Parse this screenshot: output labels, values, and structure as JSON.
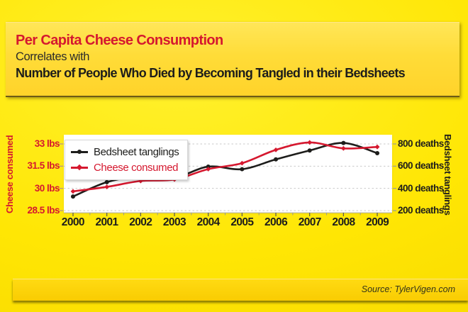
{
  "header": {
    "title_line1": "Per Capita Cheese Consumption",
    "title_line2": "Correlates with",
    "title_line3": "Number of People Who Died by Becoming Tangled in their Bedsheets"
  },
  "footer": {
    "source_text": "Source: TylerVigen.com"
  },
  "colors": {
    "background": "#ffe604",
    "card": "#ffd935",
    "accent_red": "#d5182f",
    "ink": "#1d1d1b",
    "panel": "#ffffff",
    "source_bar": "#f9cc02",
    "gridline": "#c9c9c9"
  },
  "chart_data": {
    "type": "line",
    "title": "Per Capita Cheese Consumption Correlates with Number of People Who Died by Becoming Tangled in their Bedsheets",
    "x": [
      2000,
      2001,
      2002,
      2003,
      2004,
      2005,
      2006,
      2007,
      2008,
      2009
    ],
    "series": [
      {
        "name": "Bedsheet tanglings",
        "axis": "right",
        "color": "#1d1d1b",
        "marker": "circle",
        "values": [
          327,
          456,
          509,
          497,
          596,
          573,
          661,
          741,
          809,
          717
        ]
      },
      {
        "name": "Cheese consumed",
        "axis": "left",
        "color": "#d5182f",
        "marker": "diamond",
        "values": [
          29.8,
          30.1,
          30.5,
          30.6,
          31.3,
          31.7,
          32.6,
          33.1,
          32.7,
          32.8
        ]
      }
    ],
    "left_axis": {
      "label": "Cheese consumed",
      "ticks": [
        "33 lbs",
        "31.5 lbs",
        "30 lbs",
        "28.5 lbs"
      ],
      "tick_values": [
        33,
        31.5,
        30,
        28.5
      ]
    },
    "right_axis": {
      "label": "Bedsheet tanglings",
      "ticks": [
        "800 deaths",
        "600 deaths",
        "400 deaths",
        "200 deaths"
      ],
      "tick_values": [
        800,
        600,
        400,
        200
      ]
    },
    "legend_position": "top-left",
    "grid": "horizontal-dashed"
  }
}
